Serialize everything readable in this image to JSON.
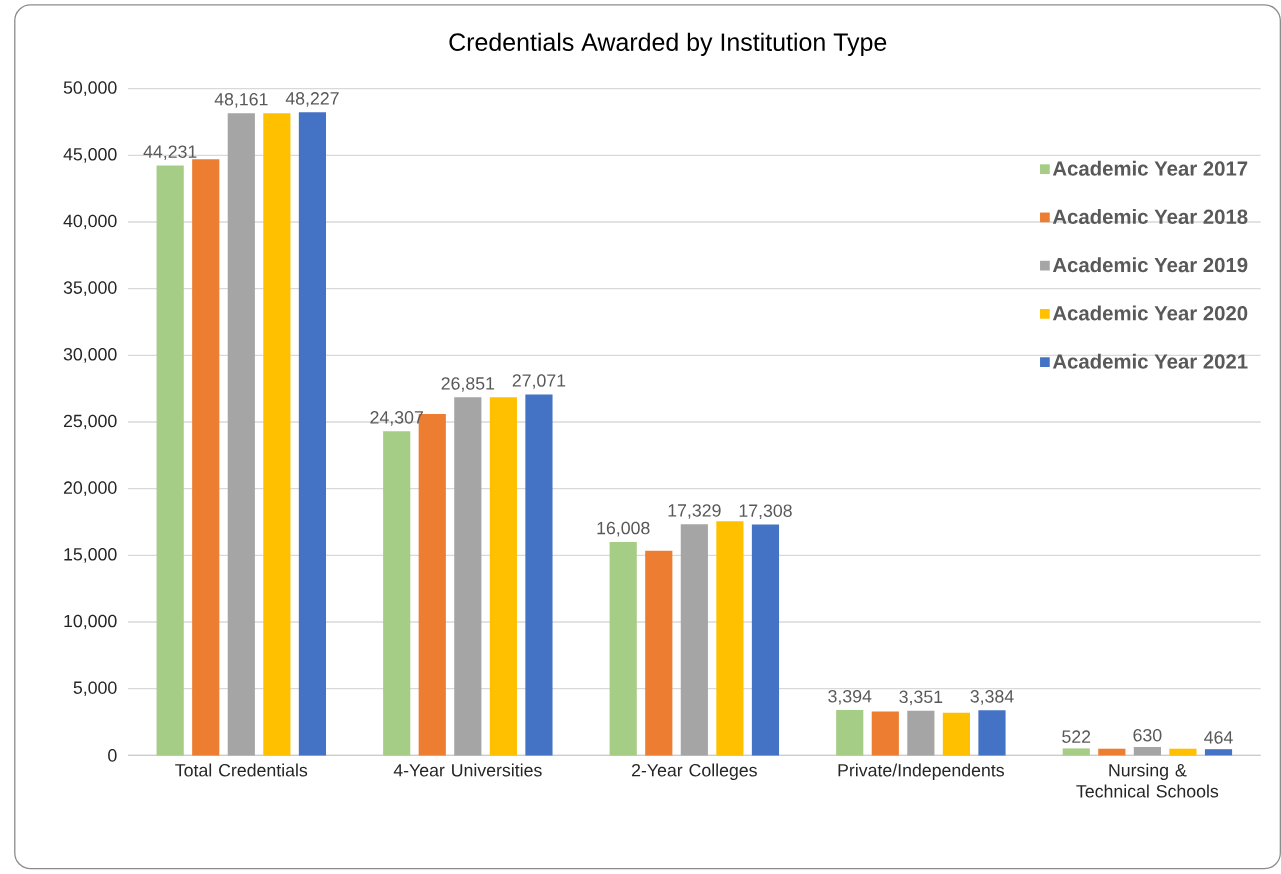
{
  "chart_data": {
    "type": "bar",
    "title": "Credentials Awarded by Institution Type",
    "categories": [
      "Total Credentials",
      "4-Year Universities",
      "2-Year Colleges",
      "Private/Independents",
      "Nursing & Technical Schools"
    ],
    "series": [
      {
        "name": "Academic Year 2017",
        "color": "#a5cd86",
        "values": [
          44231,
          24307,
          16008,
          3394,
          522
        ],
        "value_labels": [
          "44,231",
          "24,307",
          "16,008",
          "3,394",
          "522"
        ]
      },
      {
        "name": "Academic Year 2018",
        "color": "#ed7d31",
        "values": [
          44700,
          25600,
          15350,
          3300,
          500
        ],
        "value_labels": [
          null,
          null,
          null,
          null,
          null
        ]
      },
      {
        "name": "Academic Year 2019",
        "color": "#a5a5a5",
        "values": [
          48161,
          26851,
          17329,
          3351,
          630
        ],
        "value_labels": [
          "48,161",
          "26,851",
          "17,329",
          "3,351",
          "630"
        ]
      },
      {
        "name": "Academic Year 2020",
        "color": "#ffc000",
        "values": [
          48150,
          26850,
          17550,
          3200,
          500
        ],
        "value_labels": [
          null,
          null,
          null,
          null,
          null
        ]
      },
      {
        "name": "Academic Year 2021",
        "color": "#4472c4",
        "values": [
          48227,
          27071,
          17308,
          3384,
          464
        ],
        "value_labels": [
          "48,227",
          "27,071",
          "17,308",
          "3,384",
          "464"
        ]
      }
    ],
    "ylim": [
      0,
      50000
    ],
    "yticks": [
      {
        "value": 0,
        "label": "0"
      },
      {
        "value": 5000,
        "label": "5,000"
      },
      {
        "value": 10000,
        "label": "10,000"
      },
      {
        "value": 15000,
        "label": "15,000"
      },
      {
        "value": 20000,
        "label": "20,000"
      },
      {
        "value": 25000,
        "label": "25,000"
      },
      {
        "value": 30000,
        "label": "30,000"
      },
      {
        "value": 35000,
        "label": "35,000"
      },
      {
        "value": 40000,
        "label": "40,000"
      },
      {
        "value": 45000,
        "label": "45,000"
      },
      {
        "value": 50000,
        "label": "50,000"
      }
    ],
    "grid": "y",
    "legend": "top right"
  }
}
